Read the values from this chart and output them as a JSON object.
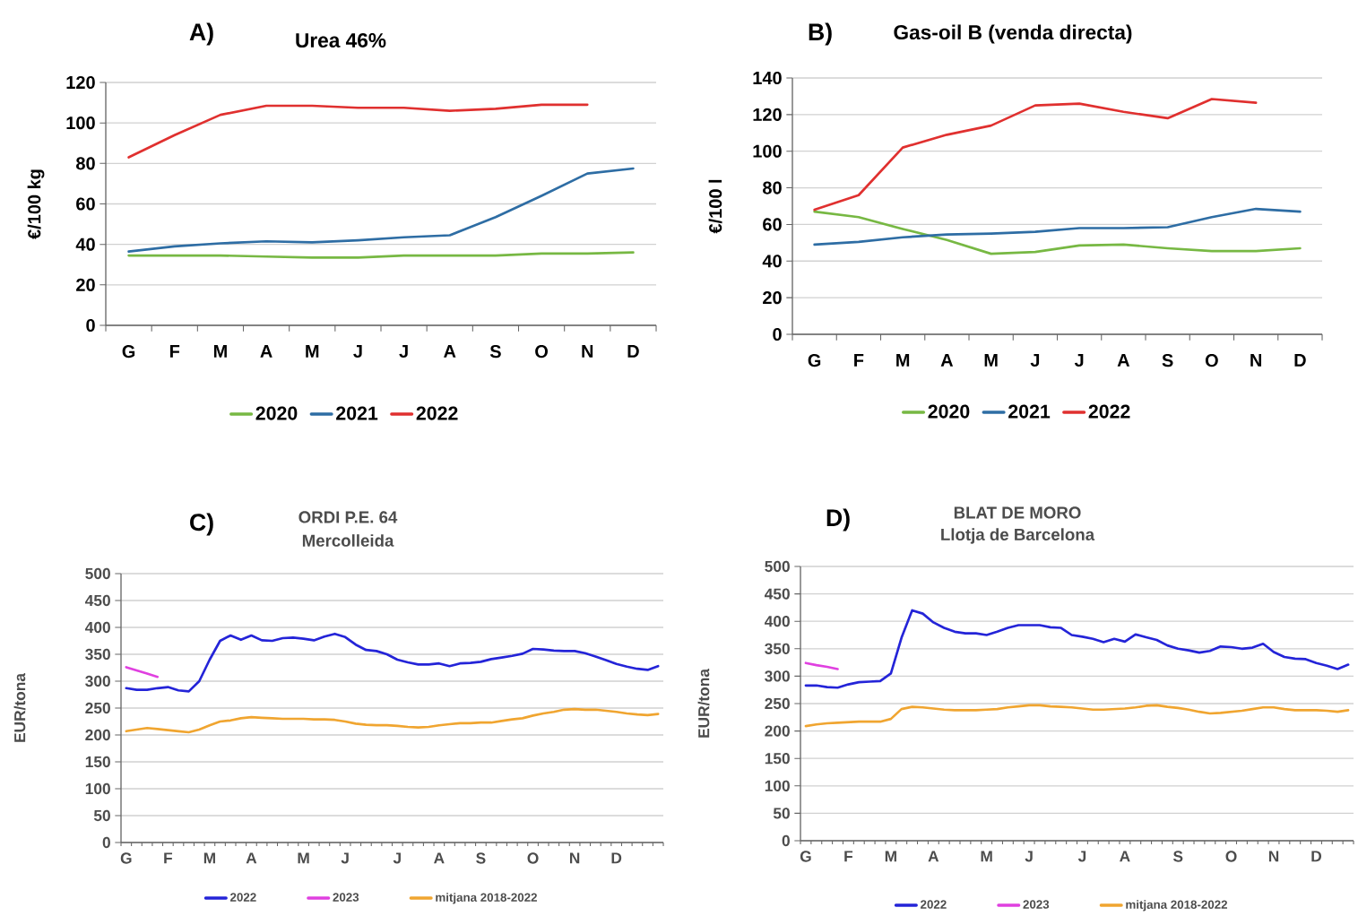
{
  "chart_data": [
    {
      "type": "line",
      "title": "A)",
      "subtitle": "Urea 46%",
      "ylabel": "€/100 kg",
      "categories": [
        "G",
        "F",
        "M",
        "A",
        "M",
        "J",
        "J",
        "A",
        "S",
        "O",
        "N",
        "D"
      ],
      "ylim": [
        0,
        120
      ],
      "yticks": [
        0,
        20,
        40,
        60,
        80,
        100,
        120
      ],
      "grid": "y",
      "legend": "bottom",
      "series": [
        {
          "name": "2020",
          "color": "#77b843",
          "values": [
            34.5,
            34.5,
            34.5,
            34,
            33.5,
            33.5,
            34.5,
            34.5,
            34.5,
            35.5,
            35.5,
            36
          ]
        },
        {
          "name": "2021",
          "color": "#2e6da4",
          "values": [
            36.5,
            39,
            40.5,
            41.5,
            41,
            42,
            43.5,
            44.5,
            53.5,
            64,
            75,
            77.5
          ]
        },
        {
          "name": "2022",
          "color": "#e0302f",
          "values": [
            83,
            94,
            104,
            108.5,
            108.5,
            107.5,
            107.5,
            106,
            107,
            109,
            109,
            null
          ]
        }
      ]
    },
    {
      "type": "line",
      "title": "B)",
      "subtitle": "Gas-oil B (venda directa)",
      "ylabel": "€/100 l",
      "categories": [
        "G",
        "F",
        "M",
        "A",
        "M",
        "J",
        "J",
        "A",
        "S",
        "O",
        "N",
        "D"
      ],
      "ylim": [
        0,
        140
      ],
      "yticks": [
        0,
        20,
        40,
        60,
        80,
        100,
        120,
        140
      ],
      "grid": "y",
      "legend": "bottom",
      "series": [
        {
          "name": "2020",
          "color": "#77b843",
          "values": [
            67,
            64,
            57.5,
            51.5,
            44,
            45,
            48.5,
            49,
            47,
            45.5,
            45.5,
            47
          ]
        },
        {
          "name": "2021",
          "color": "#2e6da4",
          "values": [
            49,
            50.5,
            53,
            54.5,
            55,
            56,
            58,
            58,
            58.5,
            64,
            68.5,
            67
          ]
        },
        {
          "name": "2022",
          "color": "#e0302f",
          "values": [
            68,
            76,
            102,
            109,
            114,
            125,
            126,
            121.5,
            118,
            128.5,
            126.5,
            null
          ]
        }
      ]
    },
    {
      "type": "line",
      "title": "C)",
      "subtitle": "ORDI P.E. 64",
      "annotations": [
        "Mercolleida"
      ],
      "ylabel": "EUR/tona",
      "categories": [
        "G",
        null,
        null,
        null,
        "F",
        null,
        null,
        null,
        "M",
        null,
        null,
        null,
        "A",
        null,
        null,
        null,
        null,
        "M",
        null,
        null,
        null,
        "J",
        null,
        null,
        null,
        null,
        "J",
        null,
        null,
        null,
        "A",
        null,
        null,
        null,
        "S",
        null,
        null,
        null,
        null,
        "O",
        null,
        null,
        null,
        "N",
        null,
        null,
        null,
        "D",
        null,
        null,
        null,
        null
      ],
      "ylim": [
        0,
        500
      ],
      "yticks": [
        0,
        50,
        100,
        150,
        200,
        250,
        300,
        350,
        400,
        450,
        500
      ],
      "grid": "y",
      "legend": "bottom",
      "series": [
        {
          "name": "2022",
          "color": "#2424d8",
          "values": [
            287,
            284,
            284,
            287,
            289,
            283,
            281,
            300,
            340,
            375,
            385,
            377,
            385,
            376,
            375,
            380,
            381,
            379,
            376,
            383,
            388,
            382,
            368,
            358,
            356,
            350,
            340,
            335,
            331,
            331,
            333,
            328,
            333,
            334,
            336,
            341,
            344,
            347,
            351,
            360,
            359,
            357,
            356,
            356,
            352,
            346,
            339,
            332,
            327,
            323,
            321,
            328
          ]
        },
        {
          "name": "2023",
          "color": "#e040e0",
          "values": [
            326,
            320,
            314,
            308,
            null,
            null,
            null,
            null,
            null,
            null,
            null,
            null,
            null,
            null,
            null,
            null,
            null,
            null,
            null,
            null,
            null,
            null,
            null,
            null,
            null,
            null,
            null,
            null,
            null,
            null,
            null,
            null,
            null,
            null,
            null,
            null,
            null,
            null,
            null,
            null,
            null,
            null,
            null,
            null,
            null,
            null,
            null,
            null,
            null,
            null,
            null,
            null
          ]
        },
        {
          "name": "mitjana 2018-2022",
          "color": "#f0a530",
          "values": [
            207,
            210,
            213,
            211,
            209,
            207,
            205,
            210,
            218,
            225,
            227,
            231,
            233,
            232,
            231,
            230,
            230,
            230,
            229,
            229,
            228,
            225,
            221,
            219,
            218,
            218,
            217,
            215,
            214,
            215,
            218,
            220,
            222,
            222,
            223,
            223,
            226,
            229,
            231,
            236,
            240,
            243,
            247,
            248,
            247,
            247,
            245,
            243,
            240,
            238,
            237,
            239
          ]
        }
      ]
    },
    {
      "type": "line",
      "title": "D)",
      "subtitle": "BLAT DE MORO",
      "annotations": [
        "Llotja de Barcelona"
      ],
      "ylabel": "EUR/tona",
      "categories": [
        "G",
        null,
        null,
        null,
        "F",
        null,
        null,
        null,
        "M",
        null,
        null,
        null,
        "A",
        null,
        null,
        null,
        null,
        "M",
        null,
        null,
        null,
        "J",
        null,
        null,
        null,
        null,
        "J",
        null,
        null,
        null,
        "A",
        null,
        null,
        null,
        null,
        "S",
        null,
        null,
        null,
        null,
        "O",
        null,
        null,
        null,
        "N",
        null,
        null,
        null,
        "D",
        null,
        null,
        null
      ],
      "ylim": [
        0,
        500
      ],
      "yticks": [
        0,
        50,
        100,
        150,
        200,
        250,
        300,
        350,
        400,
        450,
        500
      ],
      "grid": "y",
      "legend": "bottom",
      "series": [
        {
          "name": "2022",
          "color": "#2424d8",
          "values": [
            283,
            283,
            280,
            279,
            285,
            289,
            290,
            291,
            305,
            370,
            420,
            414,
            398,
            388,
            381,
            378,
            378,
            375,
            381,
            388,
            393,
            393,
            393,
            389,
            388,
            375,
            372,
            368,
            362,
            368,
            363,
            376,
            371,
            366,
            356,
            350,
            347,
            343,
            346,
            354,
            353,
            350,
            352,
            359,
            344,
            335,
            332,
            331,
            324,
            319,
            313,
            321
          ]
        },
        {
          "name": "2023",
          "color": "#e040e0",
          "values": [
            324,
            320,
            317,
            313,
            null,
            null,
            null,
            null,
            null,
            null,
            null,
            null,
            null,
            null,
            null,
            null,
            null,
            null,
            null,
            null,
            null,
            null,
            null,
            null,
            null,
            null,
            null,
            null,
            null,
            null,
            null,
            null,
            null,
            null,
            null,
            null,
            null,
            null,
            null,
            null,
            null,
            null,
            null,
            null,
            null,
            null,
            null,
            null,
            null,
            null,
            null,
            null
          ]
        },
        {
          "name": "mitjana 2018-2022",
          "color": "#f0a530",
          "values": [
            209,
            212,
            214,
            215,
            216,
            217,
            217,
            217,
            222,
            240,
            244,
            243,
            241,
            239,
            238,
            238,
            238,
            239,
            240,
            243,
            245,
            247,
            247,
            245,
            244,
            243,
            241,
            239,
            239,
            240,
            241,
            243,
            246,
            247,
            244,
            242,
            239,
            235,
            232,
            233,
            235,
            237,
            240,
            243,
            243,
            240,
            238,
            238,
            238,
            237,
            235,
            238
          ]
        }
      ]
    }
  ]
}
